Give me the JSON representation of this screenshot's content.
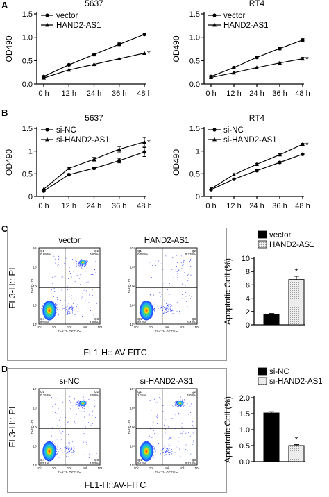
{
  "panel_labels": [
    "A",
    "B",
    "C",
    "D"
  ],
  "chart_data": [
    {
      "id": "A-5637",
      "type": "line",
      "title": "5637",
      "ylabel": "OD490",
      "xlabel": "",
      "categories": [
        "0 h",
        "12 h",
        "24 h",
        "36 h",
        "48 h"
      ],
      "x": [
        0,
        12,
        24,
        36,
        48
      ],
      "ylim": [
        0,
        1.5
      ],
      "yticks": [
        0,
        0.5,
        1.0,
        1.5
      ],
      "ytick_labels": [
        "0.0",
        "0.5",
        "1.0",
        "1.5"
      ],
      "legend_position": "top-left",
      "series": [
        {
          "name": "vector",
          "marker": "circle",
          "values": [
            0.16,
            0.41,
            0.63,
            0.85,
            1.06
          ],
          "err": [
            0.01,
            0.02,
            0.03,
            0.03,
            0.01
          ]
        },
        {
          "name": "HAND2-AS1",
          "marker": "triangle",
          "values": [
            0.13,
            0.3,
            0.42,
            0.54,
            0.66
          ],
          "err": [
            0.01,
            0.01,
            0.01,
            0.01,
            0.01
          ],
          "star": "*"
        }
      ]
    },
    {
      "id": "A-RT4",
      "type": "line",
      "title": "RT4",
      "ylabel": "OD490",
      "xlabel": "",
      "categories": [
        "0 h",
        "12 h",
        "24 h",
        "36 h",
        "48 h"
      ],
      "x": [
        0,
        12,
        24,
        36,
        48
      ],
      "ylim": [
        0,
        1.5
      ],
      "yticks": [
        0,
        0.5,
        1.0,
        1.5
      ],
      "ytick_labels": [
        "0.0",
        "0.5",
        "1.0",
        "1.5"
      ],
      "legend_position": "top-left",
      "series": [
        {
          "name": "vector",
          "marker": "circle",
          "values": [
            0.16,
            0.35,
            0.57,
            0.76,
            0.94
          ],
          "err": [
            0.02,
            0.02,
            0.02,
            0.03,
            0.03
          ]
        },
        {
          "name": "HAND2-AS1",
          "marker": "triangle",
          "values": [
            0.14,
            0.24,
            0.35,
            0.45,
            0.54
          ],
          "err": [
            0.01,
            0.01,
            0.01,
            0.02,
            0.03
          ],
          "star": "*"
        }
      ]
    },
    {
      "id": "B-5637",
      "type": "line",
      "title": "5637",
      "ylabel": "OD490",
      "xlabel": "",
      "categories": [
        "0 h",
        "12 h",
        "24 h",
        "36 h",
        "48 h"
      ],
      "x": [
        0,
        12,
        24,
        36,
        48
      ],
      "ylim": [
        0,
        1.5
      ],
      "yticks": [
        0,
        0.5,
        1.0,
        1.5
      ],
      "ytick_labels": [
        "0",
        "0.5",
        "1",
        "1.5"
      ],
      "legend_position": "top-left",
      "series": [
        {
          "name": "si-NC",
          "marker": "circle",
          "values": [
            0.12,
            0.48,
            0.62,
            0.79,
            0.98
          ],
          "err": [
            0.01,
            0.02,
            0.02,
            0.05,
            0.1
          ]
        },
        {
          "name": "si-HAND2-AS1",
          "marker": "triangle",
          "values": [
            0.16,
            0.62,
            0.82,
            1.04,
            1.2
          ],
          "err": [
            0.01,
            0.02,
            0.04,
            0.06,
            0.1
          ],
          "star": "*"
        }
      ]
    },
    {
      "id": "B-RT4",
      "type": "line",
      "title": "RT4",
      "ylabel": "OD490",
      "xlabel": "",
      "categories": [
        "0 h",
        "12 h",
        "24 h",
        "36 h",
        "48 h"
      ],
      "x": [
        0,
        12,
        24,
        36,
        48
      ],
      "ylim": [
        0,
        1.5
      ],
      "yticks": [
        0,
        0.5,
        1.0,
        1.5
      ],
      "ytick_labels": [
        "0",
        "0.5",
        "1",
        "1.5"
      ],
      "legend_position": "top-left",
      "series": [
        {
          "name": "si-NC",
          "marker": "circle",
          "values": [
            0.15,
            0.38,
            0.57,
            0.75,
            0.93
          ],
          "err": [
            0.01,
            0.02,
            0.02,
            0.02,
            0.01
          ]
        },
        {
          "name": "si-HAND2-AS1",
          "marker": "triangle",
          "values": [
            0.17,
            0.48,
            0.71,
            0.92,
            1.15
          ],
          "err": [
            0.01,
            0.02,
            0.02,
            0.02,
            0.02
          ],
          "star": "*"
        }
      ]
    },
    {
      "id": "C-bar",
      "type": "bar",
      "title": "",
      "ylabel": "Apoptotic Cell (%)",
      "xlabel": "",
      "categories": [
        "vector",
        "HAND2-AS1"
      ],
      "ylim": [
        0,
        10
      ],
      "yticks": [
        0,
        2,
        4,
        6,
        8,
        10
      ],
      "ytick_labels": [
        "0",
        "2",
        "4",
        "6",
        "8",
        "10"
      ],
      "legend_position": "top",
      "series": [
        {
          "name": "",
          "values": [
            1.6,
            6.8
          ],
          "err": [
            0.1,
            0.5
          ]
        }
      ],
      "colors": [
        "#000000",
        "#ececec"
      ],
      "patterns": [
        "solid",
        "dotted"
      ],
      "star_index": 1
    },
    {
      "id": "D-bar",
      "type": "bar",
      "title": "",
      "ylabel": "Apoptotic Cell (%)",
      "xlabel": "",
      "categories": [
        "si-NC",
        "si-HAND2-AS1"
      ],
      "ylim": [
        0,
        2.0
      ],
      "yticks": [
        0,
        0.5,
        1.0,
        1.5,
        2.0
      ],
      "ytick_labels": [
        "0.0",
        "0.5",
        "1.0",
        "1.5",
        "2.0"
      ],
      "legend_position": "top",
      "series": [
        {
          "name": "",
          "values": [
            1.52,
            0.5
          ],
          "err": [
            0.04,
            0.03
          ]
        }
      ],
      "colors": [
        "#000000",
        "#ececec"
      ],
      "patterns": [
        "solid",
        "dotted"
      ],
      "star_index": 1
    }
  ],
  "flow": {
    "C": {
      "left": {
        "title": "vector",
        "Q1": "0.690%",
        "Q2": "4.80%",
        "Q3": "1.68%",
        "Q4": "92.8%"
      },
      "right": {
        "title": "HAND2-AS1",
        "Q1": "0.036%",
        "Q2": "0.270%",
        "Q3": "6.44%",
        "Q4": "93.3%"
      },
      "ylabel": "FL3-H:: PI",
      "xlabel": "FL1-H:: AV-FITC",
      "inner_ylabel": "FL3-H:: PI",
      "inner_xlabel": "FL1-H:: AV-FITC"
    },
    "D": {
      "left": {
        "title": "si-NC",
        "Q1": "0.752%",
        "Q2": "4.59%",
        "Q3": "1.53%",
        "Q4": "93.1%"
      },
      "right": {
        "title": "si-HAND2-AS1",
        "Q1": "1.15%",
        "Q2": "4.08%",
        "Q3": "0.514%",
        "Q4": "94.3%"
      },
      "ylabel": "FL3-H:: PI",
      "xlabel": "FL1-H::AV-FITC",
      "inner_ylabel": "FL3-H:: PI",
      "inner_xlabel": "FL1-H:: AV-FITC"
    },
    "axis_ticks": [
      "10⁰",
      "10¹",
      "10²",
      "10³",
      "10⁴"
    ],
    "quadrant_labels": [
      "Q1",
      "Q2",
      "Q3",
      "Q4"
    ]
  }
}
